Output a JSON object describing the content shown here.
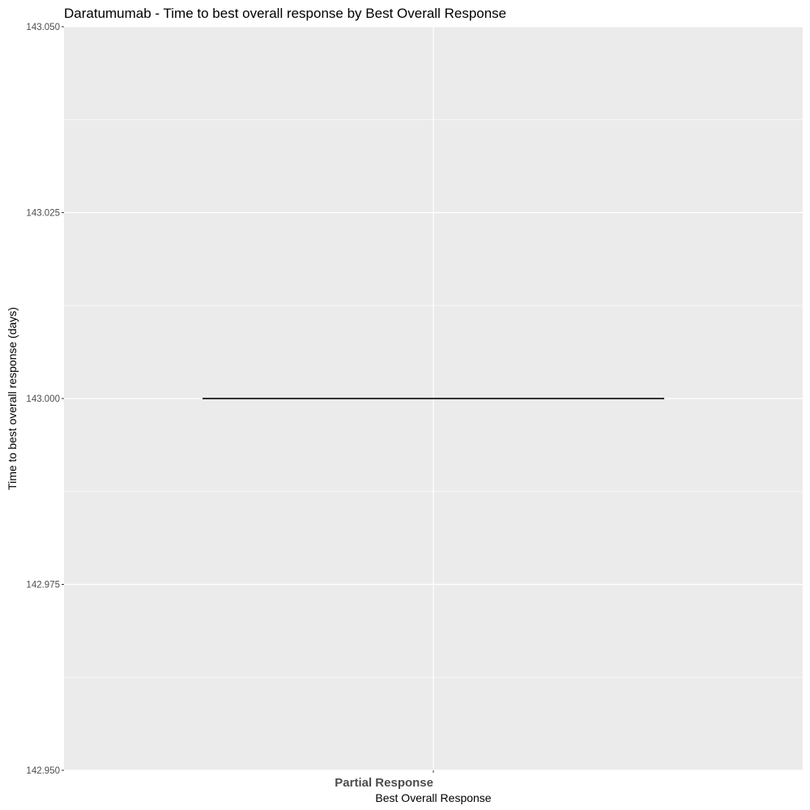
{
  "chart_data": {
    "type": "box",
    "title": "Daratumumab - Time to best overall response by Best Overall Response",
    "xlabel": "Best Overall Response",
    "ylabel": "Time to best overall response (days)",
    "categories": [
      "Partial Response"
    ],
    "values": [
      143.0
    ],
    "ylim": [
      142.95,
      143.05
    ],
    "y_ticks": [
      "142.950",
      "142.975",
      "143.000",
      "143.025",
      "143.050"
    ],
    "y_tick_values": [
      142.95,
      142.975,
      143.0,
      143.025,
      143.05
    ],
    "y_minor_tick_values": [
      142.9625,
      142.9875,
      143.0125,
      143.0375
    ],
    "grid": true,
    "legend": "none",
    "colors": {
      "panel_background": "#ebebeb",
      "grid_major": "#ffffff",
      "grid_minor": "#f7f7f7",
      "median_line": "#333333",
      "tick_text": "#4d4d4d",
      "tick_mark": "#333333",
      "title_text": "#000000"
    }
  }
}
